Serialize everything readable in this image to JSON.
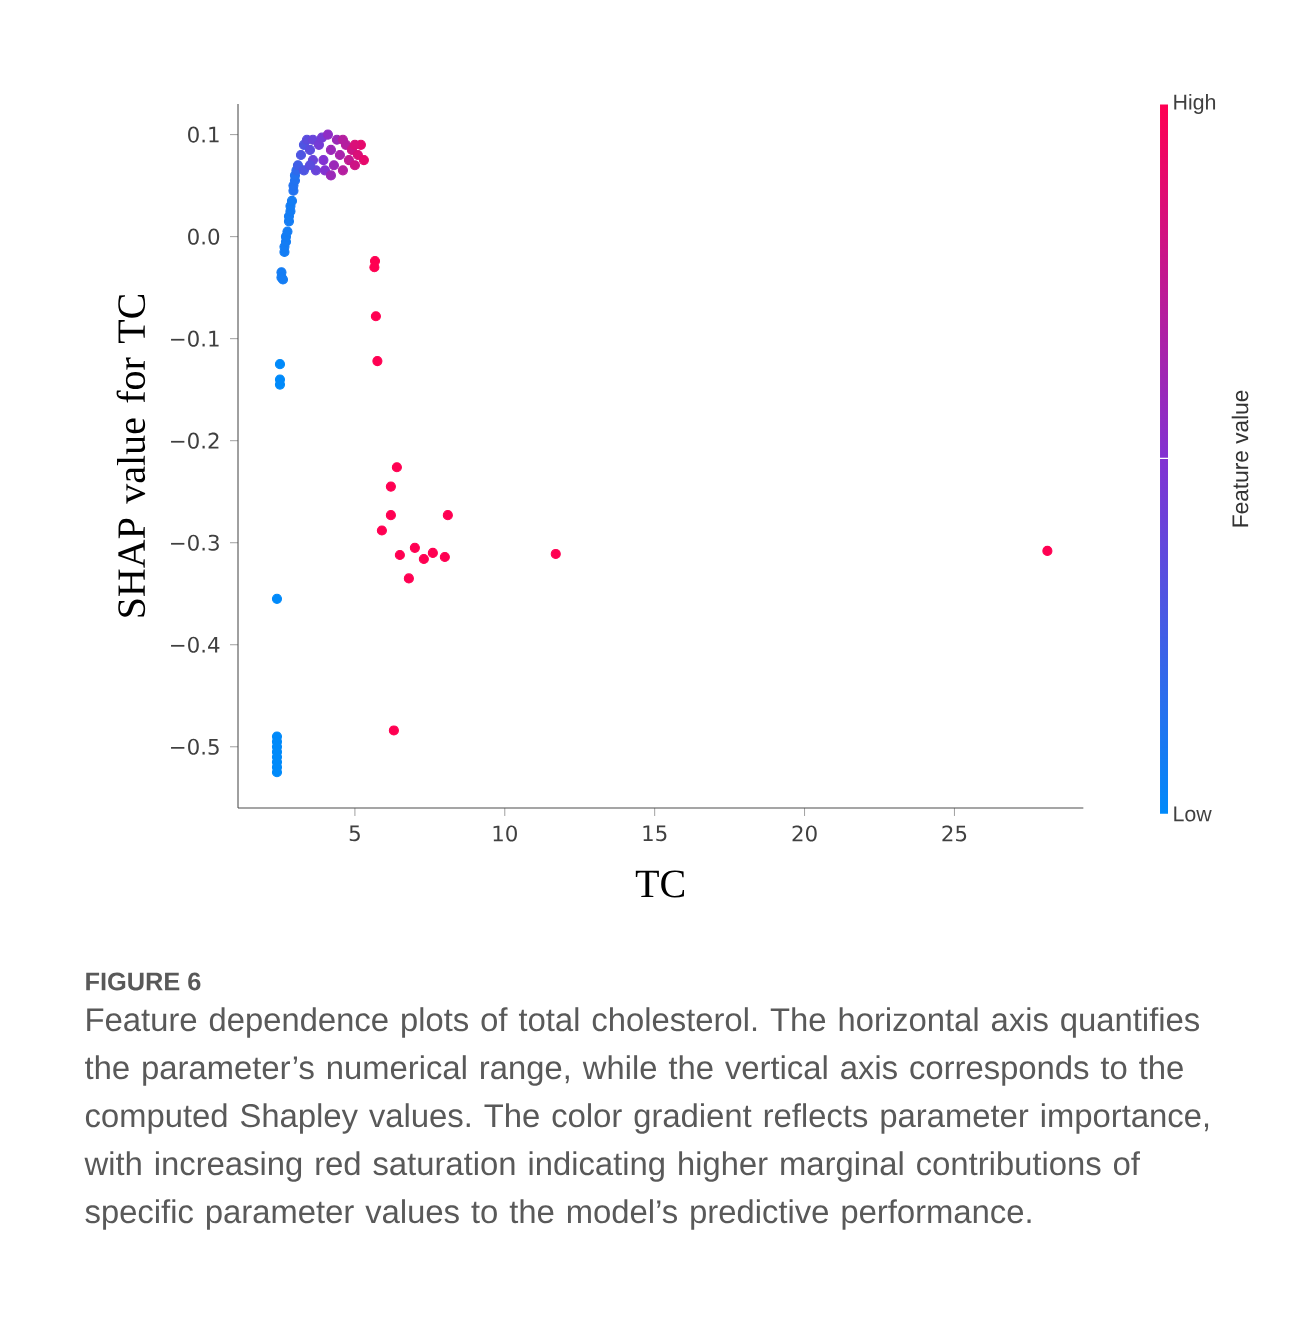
{
  "chart_data": {
    "type": "scatter",
    "xlabel": "TC",
    "ylabel": "SHAP value for TC",
    "clabel": "Feature value",
    "annotations": [
      "FIGURE 6",
      "Feature dependence plots of total cholesterol. The horizontal axis quantifies the parameter’s numerical range, while the vertical axis corresponds to the computed Shapley values. The color gradient reflects parameter importance, with increasing red saturation indicating higher marginal contributions of specific parameter values to the model’s predictive performance.",
      "High",
      "Low"
    ],
    "marker": "circle",
    "xlim": [
      1.1,
      29.3
    ],
    "ylim": [
      -0.56,
      0.13
    ],
    "xticks": [
      5,
      10,
      15,
      20,
      25
    ],
    "yticks": [
      0.1,
      {
        "value": 0,
        "label": "0.0"
      },
      {
        "value": -0.1,
        "label": "−0.1"
      },
      {
        "value": -0.2,
        "label": "−0.2"
      },
      {
        "value": -0.3,
        "label": "−0.3"
      },
      {
        "value": -0.4,
        "label": "−0.4"
      },
      {
        "value": -0.5,
        "label": "−0.5"
      }
    ],
    "x": [
      2.4,
      2.4,
      2.4,
      2.4,
      2.4,
      2.4,
      2.4,
      2.4,
      2.4,
      2.5,
      2.5,
      2.5,
      2.55,
      2.55,
      2.6,
      2.65,
      2.65,
      2.7,
      2.7,
      2.75,
      2.8,
      2.8,
      2.85,
      2.85,
      2.9,
      2.95,
      2.95,
      3.0,
      3.0,
      3.05,
      3.1,
      3.2,
      3.3,
      3.4,
      3.5,
      3.6,
      3.6,
      3.7,
      3.8,
      3.9,
      3.95,
      4.0,
      4.1,
      4.2,
      4.3,
      4.4,
      4.5,
      4.6,
      4.7,
      4.8,
      4.9,
      5.0,
      5.1,
      5.2,
      5.3,
      3.3,
      3.5,
      4.2,
      4.6,
      5.0,
      5.67,
      5.65,
      5.7,
      5.75,
      6.4,
      6.2,
      6.2,
      5.9,
      6.5,
      7.0,
      7.3,
      6.8,
      7.6,
      8.0,
      8.1,
      6.3,
      11.7,
      28.1
    ],
    "values": [
      -0.49,
      -0.495,
      -0.5,
      -0.505,
      -0.51,
      -0.515,
      -0.52,
      -0.525,
      -0.355,
      -0.125,
      -0.14,
      -0.145,
      -0.035,
      -0.04,
      -0.042,
      -0.015,
      -0.01,
      -0.005,
      0.0,
      0.005,
      0.015,
      0.02,
      0.025,
      0.03,
      0.035,
      0.045,
      0.05,
      0.055,
      0.06,
      0.065,
      0.07,
      0.08,
      0.09,
      0.095,
      0.085,
      0.075,
      0.095,
      0.065,
      0.09,
      0.097,
      0.075,
      0.065,
      0.1,
      0.085,
      0.07,
      0.095,
      0.08,
      0.065,
      0.09,
      0.075,
      0.085,
      0.07,
      0.08,
      0.09,
      0.075,
      0.065,
      0.07,
      0.06,
      0.095,
      0.09,
      -0.024,
      -0.03,
      -0.078,
      -0.122,
      -0.226,
      -0.245,
      -0.273,
      -0.288,
      -0.312,
      -0.305,
      -0.316,
      -0.335,
      -0.31,
      -0.314,
      -0.273,
      -0.484,
      -0.311,
      -0.308
    ],
    "colors": [
      "#008afa",
      "#008afa",
      "#008afa",
      "#008afa",
      "#008afa",
      "#008afa",
      "#008afa",
      "#008afa",
      "#008afa",
      "#008afa",
      "#008afa",
      "#008afa",
      "#147df4",
      "#147df4",
      "#147df4",
      "#147df4",
      "#147df4",
      "#147df4",
      "#147df4",
      "#147df4",
      "#147df4",
      "#147df4",
      "#147df4",
      "#147df4",
      "#147df4",
      "#2273f0",
      "#2273f0",
      "#2273f0",
      "#2273f0",
      "#2f6aec",
      "#415ee6",
      "#4e55e2",
      "#4e55e2",
      "#5b4cde",
      "#5b4cde",
      "#6844da",
      "#6844da",
      "#6844da",
      "#753bd6",
      "#753bd6",
      "#8232d2",
      "#8232d2",
      "#8f2dc5",
      "#9b28b8",
      "#9b28b8",
      "#9b28b8",
      "#a823ac",
      "#b41e9f",
      "#b41e9f",
      "#c11992",
      "#cd1485",
      "#cd1485",
      "#da0f78",
      "#e60a6c",
      "#e60a6c",
      "#4e55e2",
      "#5b4cde",
      "#9b28b8",
      "#b41e9f",
      "#da0f78",
      "#ff0052",
      "#ff0052",
      "#ff0052",
      "#ff0052",
      "#ff0052",
      "#ff0052",
      "#ff0052",
      "#ff0052",
      "#ff0052",
      "#ff0052",
      "#ff0052",
      "#ff0052",
      "#ff0052",
      "#ff0052",
      "#ff0052",
      "#ff0052",
      "#ff0052",
      "#ff0052"
    ]
  }
}
